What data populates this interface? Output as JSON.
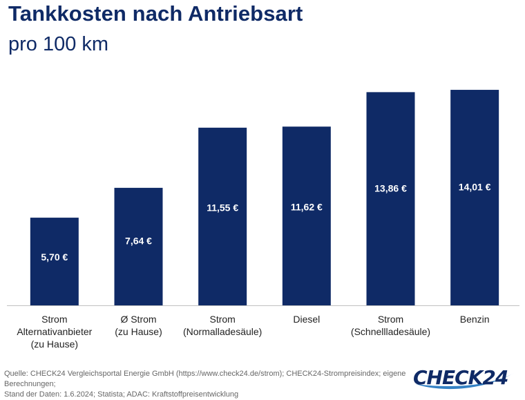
{
  "header": {
    "title": "Tankkosten nach Antriebsart",
    "subtitle": "pro 100 km"
  },
  "footer": {
    "source_line1": "Quelle: CHECK24 Vergleichsportal Energie GmbH (https://www.check24.de/strom); CHECK24-Strompreisindex; eigene Berechnungen;",
    "source_line2": "Stand der Daten: 1.6.2024; Statista; ADAC: Kraftstoffpreisentwicklung",
    "logo_text": "CHECK24"
  },
  "colors": {
    "bar": "#0f2a66",
    "bar_label": "#ffffff",
    "axis": "#bfbfbf",
    "category_text": "#222222",
    "logo_swoosh": "#1e73be"
  },
  "chart_data": {
    "type": "bar",
    "title": "Tankkosten nach Antriebsart",
    "subtitle": "pro 100 km",
    "xlabel": "",
    "ylabel": "",
    "ylim": [
      0,
      15.0
    ],
    "grid": false,
    "legend": "none",
    "categories": [
      [
        "Strom",
        "Alternativanbieter",
        "(zu Hause)"
      ],
      [
        "Ø Strom",
        "(zu Hause)"
      ],
      [
        "Strom",
        "(Normalladesäule)"
      ],
      [
        "Diesel"
      ],
      [
        "Strom",
        "(Schnellladesäule)"
      ],
      [
        "Benzin"
      ]
    ],
    "values": [
      5.7,
      7.64,
      11.55,
      11.62,
      13.86,
      14.01
    ],
    "data_labels": [
      "5,70 €",
      "7,64 €",
      "11,55 €",
      "11,62 €",
      "13,86 €",
      "14,01 €"
    ]
  }
}
